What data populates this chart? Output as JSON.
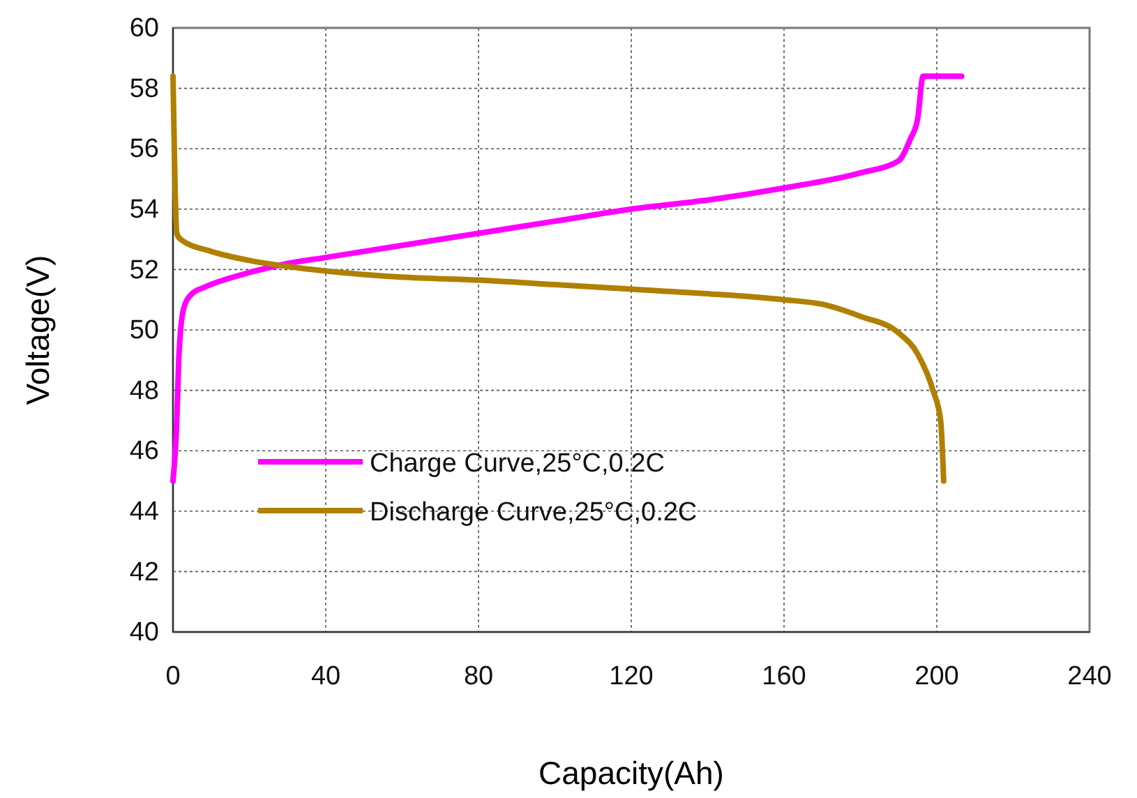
{
  "chart_data": {
    "type": "line",
    "xlabel": "Capacity(Ah)",
    "ylabel": "Voltage(V)",
    "xlim": [
      0,
      240
    ],
    "xticks": [
      0,
      40,
      80,
      120,
      160,
      200,
      240
    ],
    "ylim": [
      40,
      60
    ],
    "yticks": [
      40,
      42,
      44,
      46,
      48,
      50,
      52,
      54,
      56,
      58,
      60
    ],
    "grid": true,
    "legend": "bottom left",
    "line_style": "solid",
    "series": [
      {
        "name": "Charge Curve,25°C,0.2C",
        "color": "#ff00ff",
        "x": [
          0,
          1,
          1.5,
          2,
          3,
          5,
          8,
          12,
          20,
          30,
          40,
          60,
          80,
          100,
          120,
          140,
          160,
          180,
          190,
          193,
          195,
          196.4,
          206.5
        ],
        "values": [
          45,
          47,
          49,
          50,
          50.8,
          51.2,
          51.4,
          51.6,
          51.9,
          52.2,
          52.4,
          52.8,
          53.2,
          53.6,
          54.0,
          54.3,
          54.7,
          55.2,
          55.6,
          56.3,
          57,
          58.4,
          58.4
        ]
      },
      {
        "name": "Discharge Curve,25°C,0.2C",
        "color": "#b08000",
        "x": [
          0,
          0.2,
          0.5,
          1,
          2,
          10,
          20,
          30,
          40,
          60,
          80,
          100,
          120,
          140,
          160,
          170,
          180,
          190,
          195,
          199,
          201,
          201.8
        ],
        "values": [
          58.4,
          57,
          55,
          53.2,
          53,
          52.6,
          52.3,
          52.1,
          51.95,
          51.75,
          51.65,
          51.5,
          51.35,
          51.2,
          51.0,
          50.85,
          50.45,
          49.9,
          49.2,
          48,
          47,
          45
        ]
      }
    ]
  }
}
